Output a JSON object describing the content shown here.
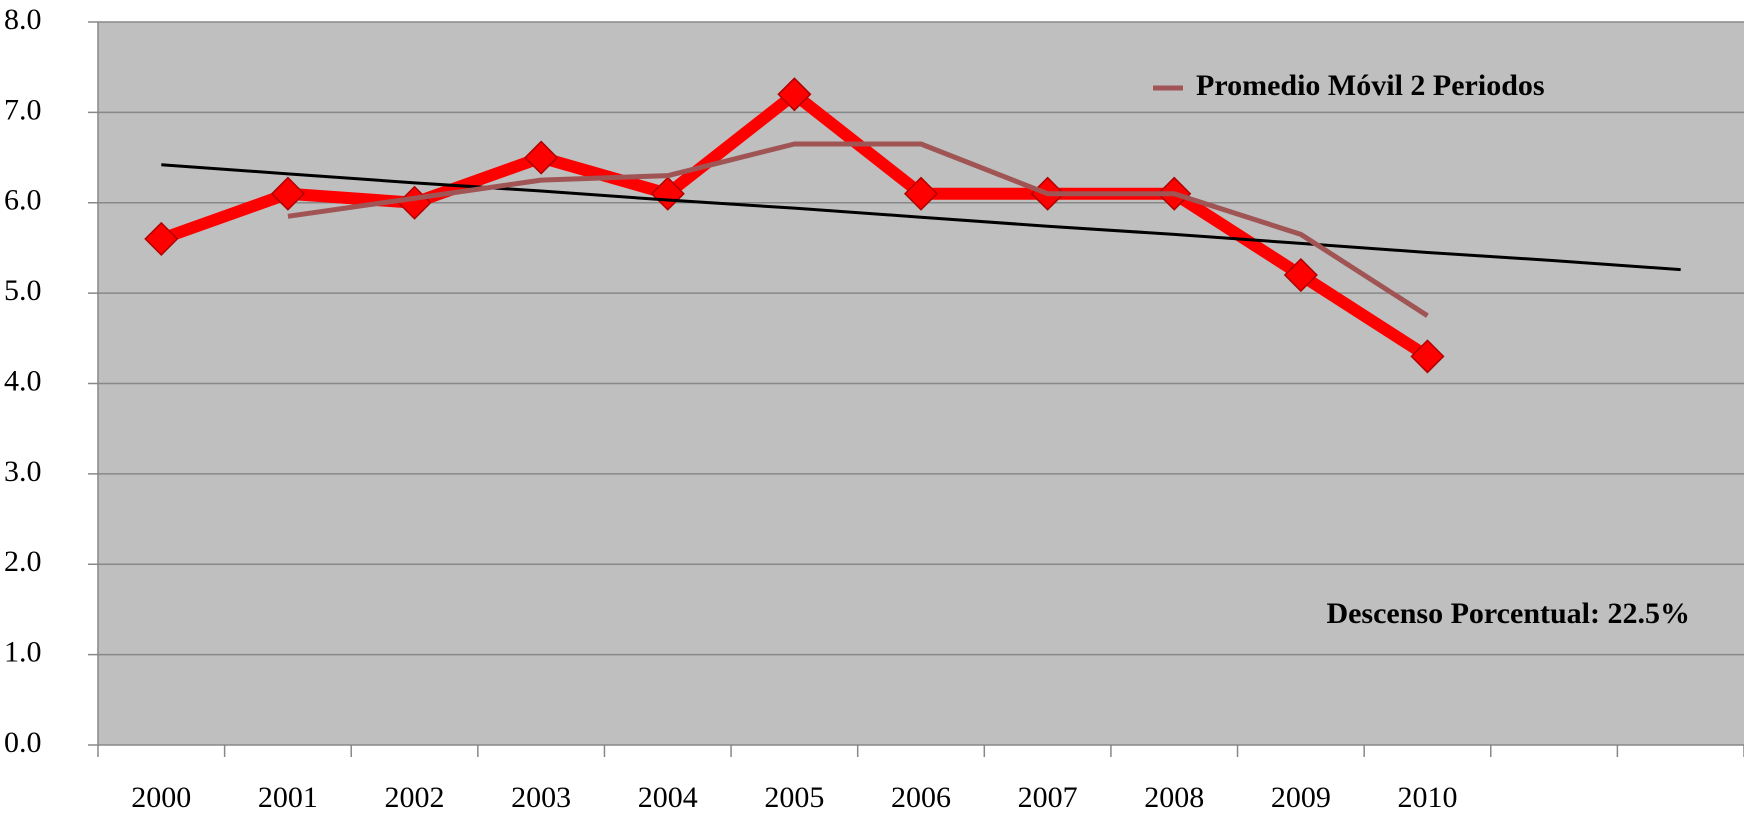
{
  "chart_data": {
    "type": "line",
    "categories": [
      "2000",
      "2001",
      "2002",
      "2003",
      "2004",
      "2005",
      "2006",
      "2007",
      "2008",
      "2009",
      "2010",
      null,
      null
    ],
    "series": [
      {
        "color": "#ff0000",
        "marker": "diamond",
        "width": 12,
        "values": [
          5.6,
          6.1,
          6.0,
          6.5,
          6.1,
          7.2,
          6.1,
          6.1,
          6.1,
          5.2,
          4.3,
          null,
          null
        ]
      },
      {
        "name": "Promedio Móvil 2 Periodos",
        "color": "#a05454",
        "width": 5,
        "values": [
          null,
          5.85,
          6.05,
          6.25,
          6.3,
          6.65,
          6.65,
          6.1,
          6.1,
          5.65,
          4.75,
          null,
          null
        ]
      },
      {
        "color": "#000000",
        "width": 3,
        "values": [
          6.42,
          6.32,
          6.22,
          6.13,
          6.03,
          5.94,
          5.84,
          5.74,
          5.65,
          5.55,
          5.45,
          5.36,
          5.26
        ]
      }
    ],
    "ylim": [
      0,
      8
    ],
    "yticks": [
      {
        "value": 0,
        "label": "0.0"
      },
      {
        "value": 1,
        "label": "1.0"
      },
      {
        "value": 2,
        "label": "2.0"
      },
      {
        "value": 3,
        "label": "3.0"
      },
      {
        "value": 4,
        "label": "4.0"
      },
      {
        "value": 5,
        "label": "5.0"
      },
      {
        "value": 6,
        "label": "6.0"
      },
      {
        "value": 7,
        "label": "7.0"
      },
      {
        "value": 8,
        "label": "8.0"
      }
    ],
    "grid": true,
    "legend": "upper right",
    "annotation": "Descenso Porcentual: 22.5%"
  }
}
